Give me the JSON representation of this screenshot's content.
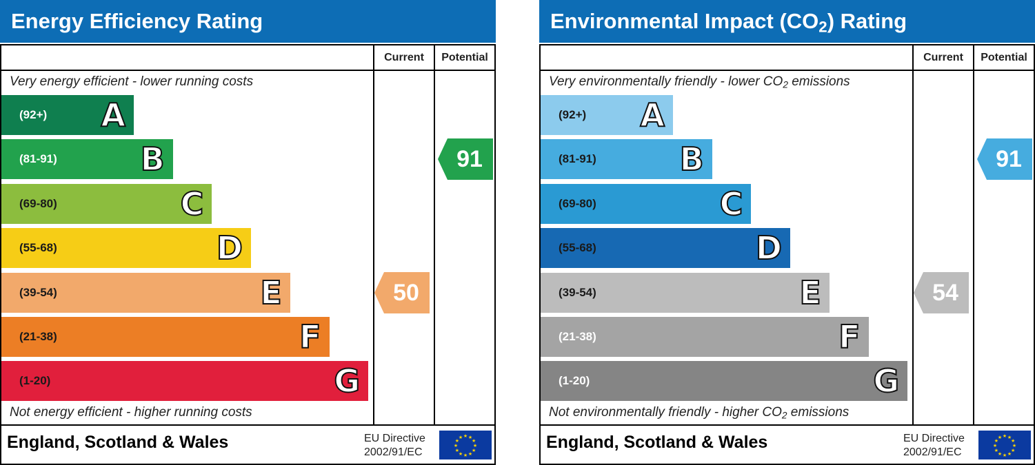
{
  "chart_data": [
    {
      "type": "bar",
      "title": "Energy Efficiency Rating",
      "columns": [
        "Current",
        "Potential"
      ],
      "top_caption": "Very energy efficient - lower running costs",
      "bottom_caption": "Not energy efficient - higher running costs",
      "bands": [
        {
          "letter": "A",
          "range": "(92+)",
          "color": "#0f7f4f",
          "text_color": "#ffffff"
        },
        {
          "letter": "B",
          "range": "(81-91)",
          "color": "#22a24d",
          "text_color": "#ffffff"
        },
        {
          "letter": "C",
          "range": "(69-80)",
          "color": "#8cbd3e",
          "text_color": "#1a1a1a"
        },
        {
          "letter": "D",
          "range": "(55-68)",
          "color": "#f6cd16",
          "text_color": "#1a1a1a"
        },
        {
          "letter": "E",
          "range": "(39-54)",
          "color": "#f2a96b",
          "text_color": "#1a1a1a"
        },
        {
          "letter": "F",
          "range": "(21-38)",
          "color": "#ec7e25",
          "text_color": "#1a1a1a"
        },
        {
          "letter": "G",
          "range": "(1-20)",
          "color": "#e11f3c",
          "text_color": "#1a1a1a"
        }
      ],
      "current": {
        "value": 50,
        "band": "E",
        "color": "#f2a96b"
      },
      "potential": {
        "value": 91,
        "band": "B",
        "color": "#22a24d"
      },
      "footer_region": "England, Scotland & Wales",
      "directive_line1": "EU Directive",
      "directive_line2": "2002/91/EC"
    },
    {
      "type": "bar",
      "title_pre": "Environmental Impact (CO",
      "title_sub": "2",
      "title_post": ") Rating",
      "columns": [
        "Current",
        "Potential"
      ],
      "top_caption_pre": "Very environmentally friendly - lower CO",
      "top_caption_sub": "2",
      "top_caption_post": " emissions",
      "bottom_caption_pre": "Not environmentally friendly - higher CO",
      "bottom_caption_sub": "2",
      "bottom_caption_post": " emissions",
      "bands": [
        {
          "letter": "A",
          "range": "(92+)",
          "color": "#8ccbed",
          "text_color": "#1a1a1a"
        },
        {
          "letter": "B",
          "range": "(81-91)",
          "color": "#46acdf",
          "text_color": "#1a1a1a"
        },
        {
          "letter": "C",
          "range": "(69-80)",
          "color": "#2a9ad3",
          "text_color": "#1a1a1a"
        },
        {
          "letter": "D",
          "range": "(55-68)",
          "color": "#1769b3",
          "text_color": "#1a1a1a"
        },
        {
          "letter": "E",
          "range": "(39-54)",
          "color": "#bcbcbc",
          "text_color": "#1a1a1a"
        },
        {
          "letter": "F",
          "range": "(21-38)",
          "color": "#a4a4a4",
          "text_color": "#ffffff"
        },
        {
          "letter": "G",
          "range": "(1-20)",
          "color": "#858585",
          "text_color": "#ffffff"
        }
      ],
      "current": {
        "value": 54,
        "band": "E",
        "color": "#bcbcbc"
      },
      "potential": {
        "value": 91,
        "band": "B",
        "color": "#46acdf"
      },
      "footer_region": "England, Scotland & Wales",
      "directive_line1": "EU Directive",
      "directive_line2": "2002/91/EC"
    }
  ]
}
